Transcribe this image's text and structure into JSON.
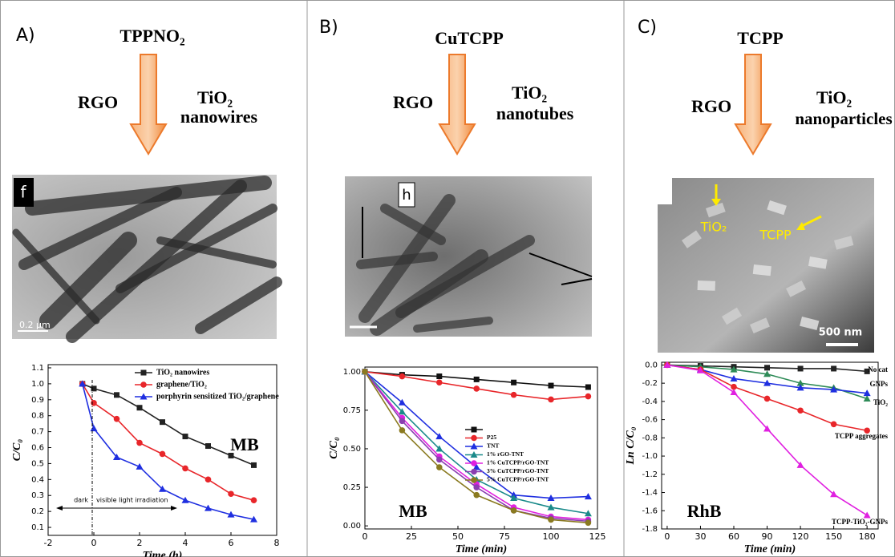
{
  "panels": [
    {
      "label": "A)",
      "top": "TPPNO₂",
      "left": "RGO",
      "right": [
        "TiO₂",
        "nanowires"
      ],
      "image_labels": [
        "f",
        "0.2 µm"
      ]
    },
    {
      "label": "B)",
      "top": "CuTCPP",
      "left": "RGO",
      "right": [
        "TiO₂",
        "nanotubes"
      ],
      "image_labels": [
        "h"
      ]
    },
    {
      "label": "C)",
      "top": "TCPP",
      "left": "RGO",
      "right": [
        "TiO₂",
        "nanoparticles"
      ],
      "image_labels": [
        "TiO₂",
        "TCPP",
        "500 nm"
      ]
    }
  ],
  "chart_data": [
    {
      "type": "line",
      "x_label": "Time (h)",
      "y_label": "C/C₀",
      "annotations": [
        "MB",
        "dark",
        "visible light irradiation"
      ],
      "x": [
        -0.5,
        0,
        1,
        2,
        3,
        4,
        5,
        6,
        7
      ],
      "xlim": [
        -2,
        8
      ],
      "xticks": [
        -2,
        0,
        2,
        4,
        6,
        8
      ],
      "ylim": [
        0.05,
        1.12
      ],
      "yticks": [
        0.1,
        0.2,
        0.3,
        0.4,
        0.5,
        0.6,
        0.7,
        0.8,
        0.9,
        {
          "value": 1.0,
          "label": "1.0"
        },
        1.1
      ],
      "legend": "upper right",
      "series": [
        {
          "name": "TiO₂ nanowires",
          "color": "#222222",
          "marker": "square",
          "values": [
            1.0,
            0.97,
            0.93,
            0.85,
            0.76,
            0.67,
            0.61,
            0.55,
            0.49
          ]
        },
        {
          "name": "graphene/TiO₂",
          "color": "#e8262a",
          "marker": "circle",
          "values": [
            1.0,
            0.88,
            0.78,
            0.63,
            0.56,
            0.47,
            0.4,
            0.31,
            0.27
          ]
        },
        {
          "name": "porphyrin sensitized TiO₂/graphene",
          "color": "#1f2fe0",
          "marker": "triangle",
          "values": [
            1.0,
            0.72,
            0.54,
            0.48,
            0.34,
            0.27,
            0.22,
            0.18,
            0.15
          ]
        }
      ]
    },
    {
      "type": "line",
      "x_label": "Time (min)",
      "y_label": "C/C₀",
      "annotations": [
        "MB"
      ],
      "x": [
        0,
        20,
        40,
        60,
        80,
        100,
        120
      ],
      "xlim": [
        0,
        125
      ],
      "xticks": [
        0,
        25,
        50,
        75,
        100,
        125
      ],
      "ylim": [
        -0.02,
        1.03
      ],
      "yticks": [
        {
          "value": 0,
          "label": "0.00"
        },
        {
          "value": 0.25,
          "label": "0.25"
        },
        {
          "value": 0.5,
          "label": "0.50"
        },
        {
          "value": 0.75,
          "label": "0.75"
        },
        {
          "value": 1.0,
          "label": "1.00"
        }
      ],
      "legend": "center right",
      "series": [
        {
          "name": null,
          "color": "#111111",
          "marker": "square",
          "values": [
            1.0,
            0.98,
            0.97,
            0.95,
            0.93,
            0.91,
            0.9
          ]
        },
        {
          "name": "P25",
          "color": "#e8262a",
          "marker": "circle",
          "values": [
            1.0,
            0.97,
            0.93,
            0.89,
            0.85,
            0.82,
            0.84
          ]
        },
        {
          "name": "TNT",
          "color": "#1f2fe0",
          "marker": "triangle",
          "values": [
            1.0,
            0.8,
            0.58,
            0.38,
            0.2,
            0.18,
            0.19
          ]
        },
        {
          "name": "1% rGO-TNT",
          "color": "#1a8a8a",
          "marker": "triangle",
          "values": [
            1.0,
            0.74,
            0.5,
            0.3,
            0.18,
            0.12,
            0.08
          ]
        },
        {
          "name": "1% CuTCPP/rGO-TNT",
          "color": "#e020e0",
          "marker": "circle",
          "values": [
            1.0,
            0.7,
            0.45,
            0.27,
            0.12,
            0.06,
            0.04
          ]
        },
        {
          "name": "3% CuTCPP/rGO-TNT",
          "color": "#8a3fb0",
          "marker": "circle",
          "values": [
            1.0,
            0.68,
            0.43,
            0.25,
            0.1,
            0.05,
            0.03
          ]
        },
        {
          "name": "5% CuTCPP/rGO-TNT",
          "color": "#8a7a20",
          "marker": "circle",
          "values": [
            1.0,
            0.62,
            0.38,
            0.2,
            0.1,
            0.04,
            0.02
          ]
        }
      ]
    },
    {
      "type": "line",
      "x_label": "Time (min)",
      "y_label": "Ln C/C₀",
      "annotations": [
        "RhB"
      ],
      "x": [
        0,
        30,
        60,
        90,
        120,
        150,
        180
      ],
      "xlim": [
        -5,
        190
      ],
      "xticks": [
        0,
        30,
        60,
        90,
        120,
        150,
        180
      ],
      "ylim": [
        -1.8,
        0.03
      ],
      "yticks": [
        {
          "value": 0,
          "label": "0.0"
        },
        -0.2,
        -0.4,
        -0.6,
        -0.8,
        {
          "value": -1.0,
          "label": "-1.0"
        },
        -1.2,
        -1.4,
        -1.6,
        -1.8
      ],
      "legend": "end labels",
      "series": [
        {
          "name": "No cat",
          "color": "#222222",
          "marker": "square",
          "values": [
            0,
            -0.01,
            -0.02,
            -0.03,
            -0.04,
            -0.04,
            -0.07
          ]
        },
        {
          "name": "GNPs",
          "color": "#2e8b57",
          "marker": "triangle",
          "values": [
            0,
            -0.02,
            -0.05,
            -0.1,
            -0.2,
            -0.25,
            -0.37
          ]
        },
        {
          "name": "TiO₂",
          "color": "#1f2fe0",
          "marker": "triangle",
          "values": [
            0,
            -0.05,
            -0.15,
            -0.2,
            -0.25,
            -0.27,
            -0.31
          ]
        },
        {
          "name": "TCPP aggregates",
          "color": "#e8262a",
          "marker": "circle",
          "values": [
            0,
            -0.05,
            -0.24,
            -0.37,
            -0.5,
            -0.65,
            -0.72
          ]
        },
        {
          "name": "TCPP-TiO₂-GNPs",
          "color": "#e020e0",
          "marker": "triangle",
          "values": [
            0,
            -0.06,
            -0.3,
            -0.7,
            -1.1,
            -1.42,
            -1.65
          ]
        }
      ]
    }
  ]
}
